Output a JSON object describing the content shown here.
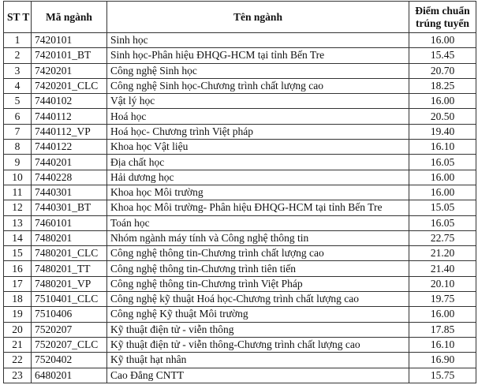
{
  "headers": {
    "stt": "ST T",
    "code": "Mã ngành",
    "name": "Tên ngành",
    "score": "Điểm chuẩn trúng tuyển"
  },
  "rows": [
    {
      "stt": "1",
      "code": "7420101",
      "name": "Sinh học",
      "score": "16.00"
    },
    {
      "stt": "2",
      "code": "7420101_BT",
      "name": "Sinh học-Phân hiệu ĐHQG-HCM tại tỉnh Bến Tre",
      "score": "15.45"
    },
    {
      "stt": "3",
      "code": "7420201",
      "name": "Công nghệ Sinh học",
      "score": "20.70"
    },
    {
      "stt": "4",
      "code": "7420201_CLC",
      "name": "Công nghệ Sinh học-Chương trình chất lượng cao",
      "score": "18.25"
    },
    {
      "stt": "5",
      "code": "7440102",
      "name": "Vật lý học",
      "score": "16.00"
    },
    {
      "stt": "6",
      "code": "7440112",
      "name": "Hoá học",
      "score": "20.50"
    },
    {
      "stt": "7",
      "code": "7440112_VP",
      "name": "Hoá học- Chương trình Việt pháp",
      "score": "19.40"
    },
    {
      "stt": "8",
      "code": "7440122",
      "name": "Khoa học Vật liệu",
      "score": "16.10"
    },
    {
      "stt": "9",
      "code": "7440201",
      "name": "Địa chất học",
      "score": "16.05"
    },
    {
      "stt": "10",
      "code": "7440228",
      "name": "Hải dương học",
      "score": "16.00"
    },
    {
      "stt": "11",
      "code": "7440301",
      "name": "Khoa học Môi trường",
      "score": "16.00"
    },
    {
      "stt": "12",
      "code": "7440301_BT",
      "name": "Khoa học Môi trường- Phân hiệu ĐHQG-HCM tại tỉnh Bến Tre",
      "score": "15.05"
    },
    {
      "stt": "13",
      "code": "7460101",
      "name": "Toán học",
      "score": "16.05"
    },
    {
      "stt": "14",
      "code": "7480201",
      "name": "Nhóm ngành máy tính và Công nghệ thông tin",
      "score": "22.75"
    },
    {
      "stt": "15",
      "code": "7480201_CLC",
      "name": "Công nghệ thông tin-Chương trình chất lượng cao",
      "score": "21.20"
    },
    {
      "stt": "16",
      "code": "7480201_TT",
      "name": "Công nghệ thông tin-Chương trình tiên tiến",
      "score": "21.40"
    },
    {
      "stt": "17",
      "code": "7480201_VP",
      "name": "Công nghệ thông tin-Chương trình Việt Pháp",
      "score": "20.10"
    },
    {
      "stt": "18",
      "code": "7510401_CLC",
      "name": "Công nghệ kỹ thuật Hoá học-Chương trình chất lượng cao",
      "score": "19.75"
    },
    {
      "stt": "19",
      "code": "7510406",
      "name": "Công nghệ Kỹ thuật Môi trường",
      "score": "16.00"
    },
    {
      "stt": "20",
      "code": "7520207",
      "name": "Kỹ thuật điện tử - viễn thông",
      "score": "17.85"
    },
    {
      "stt": "21",
      "code": "7520207_CLC",
      "name": "Kỹ thuật điện tử - viễn thông-Chương trình chất lượng cao",
      "score": "16.10"
    },
    {
      "stt": "22",
      "code": "7520402",
      "name": "Kỹ thuật hạt nhân",
      "score": "16.90"
    },
    {
      "stt": "23",
      "code": "6480201",
      "name": "Cao Đẳng CNTT",
      "score": "15.75"
    }
  ]
}
